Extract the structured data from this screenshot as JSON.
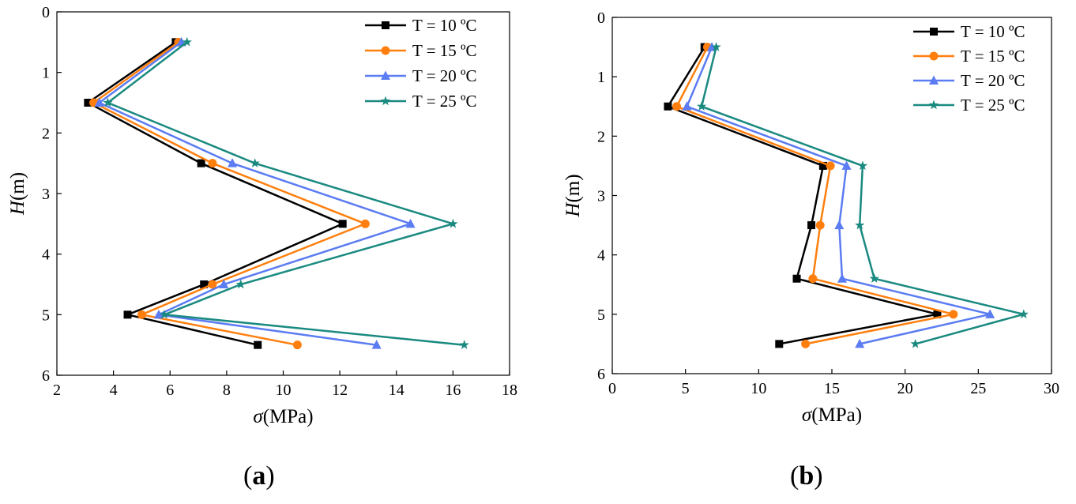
{
  "panel_labels": {
    "a": {
      "open": "(",
      "letter": "a",
      "close": ")"
    },
    "b": {
      "open": "(",
      "letter": "b",
      "close": ")"
    }
  },
  "chart_data": [
    {
      "id": "a",
      "type": "line",
      "xlabel_symbol": "σ",
      "xlabel_unit": "(MPa)",
      "ylabel_symbol": "H",
      "ylabel_unit": "(m)",
      "xlim": [
        2,
        18
      ],
      "ylim": [
        0,
        6
      ],
      "y_inverted": true,
      "xticks": [
        2,
        4,
        6,
        8,
        10,
        12,
        14,
        16,
        18
      ],
      "yticks": [
        0,
        1,
        2,
        3,
        4,
        5,
        6
      ],
      "legend_position": "top-right",
      "series": [
        {
          "name": "T = 10 ºC",
          "color": "#000000",
          "marker": "square",
          "points": [
            [
              6.2,
              0.5
            ],
            [
              3.1,
              1.5
            ],
            [
              7.1,
              2.5
            ],
            [
              12.1,
              3.5
            ],
            [
              7.2,
              4.5
            ],
            [
              4.5,
              5.0
            ],
            [
              9.1,
              5.5
            ]
          ]
        },
        {
          "name": "T = 15 ºC",
          "color": "#ff7f0e",
          "marker": "circle",
          "points": [
            [
              6.3,
              0.5
            ],
            [
              3.3,
              1.5
            ],
            [
              7.5,
              2.5
            ],
            [
              12.9,
              3.5
            ],
            [
              7.5,
              4.5
            ],
            [
              5.0,
              5.0
            ],
            [
              10.5,
              5.5
            ]
          ]
        },
        {
          "name": "T = 20 ºC",
          "color": "#5b7cf2",
          "marker": "triangle",
          "points": [
            [
              6.4,
              0.5
            ],
            [
              3.5,
              1.5
            ],
            [
              8.2,
              2.5
            ],
            [
              14.5,
              3.5
            ],
            [
              7.9,
              4.5
            ],
            [
              5.6,
              5.0
            ],
            [
              13.3,
              5.5
            ]
          ]
        },
        {
          "name": "T = 25 ºC",
          "color": "#1a8a80",
          "marker": "star",
          "points": [
            [
              6.6,
              0.5
            ],
            [
              3.8,
              1.5
            ],
            [
              9.0,
              2.5
            ],
            [
              16.0,
              3.5
            ],
            [
              8.5,
              4.5
            ],
            [
              5.8,
              5.0
            ],
            [
              16.4,
              5.5
            ]
          ]
        }
      ]
    },
    {
      "id": "b",
      "type": "line",
      "xlabel_symbol": "σ",
      "xlabel_unit": "(MPa)",
      "ylabel_symbol": "H",
      "ylabel_unit": "(m)",
      "xlim": [
        0,
        30
      ],
      "ylim": [
        0,
        6
      ],
      "y_inverted": true,
      "xticks": [
        0,
        5,
        10,
        15,
        20,
        25,
        30
      ],
      "yticks": [
        0,
        1,
        2,
        3,
        4,
        5,
        6
      ],
      "legend_position": "top-right",
      "series": [
        {
          "name": "T = 10 ºC",
          "color": "#000000",
          "marker": "square",
          "points": [
            [
              6.3,
              0.5
            ],
            [
              3.8,
              1.5
            ],
            [
              14.4,
              2.5
            ],
            [
              13.6,
              3.5
            ],
            [
              12.6,
              4.4
            ],
            [
              22.2,
              5.0
            ],
            [
              11.4,
              5.5
            ]
          ]
        },
        {
          "name": "T = 15 ºC",
          "color": "#ff7f0e",
          "marker": "circle",
          "points": [
            [
              6.5,
              0.5
            ],
            [
              4.4,
              1.5
            ],
            [
              14.9,
              2.5
            ],
            [
              14.2,
              3.5
            ],
            [
              13.7,
              4.4
            ],
            [
              23.3,
              5.0
            ],
            [
              13.2,
              5.5
            ]
          ]
        },
        {
          "name": "T = 20 ºC",
          "color": "#5b7cf2",
          "marker": "triangle",
          "points": [
            [
              6.8,
              0.5
            ],
            [
              5.1,
              1.5
            ],
            [
              16.0,
              2.5
            ],
            [
              15.5,
              3.5
            ],
            [
              15.7,
              4.4
            ],
            [
              25.8,
              5.0
            ],
            [
              16.9,
              5.5
            ]
          ]
        },
        {
          "name": "T = 25 ºC",
          "color": "#1a8a80",
          "marker": "star",
          "points": [
            [
              7.1,
              0.5
            ],
            [
              6.1,
              1.5
            ],
            [
              17.1,
              2.5
            ],
            [
              16.9,
              3.5
            ],
            [
              17.9,
              4.4
            ],
            [
              28.1,
              5.0
            ],
            [
              20.7,
              5.5
            ]
          ]
        }
      ]
    }
  ]
}
